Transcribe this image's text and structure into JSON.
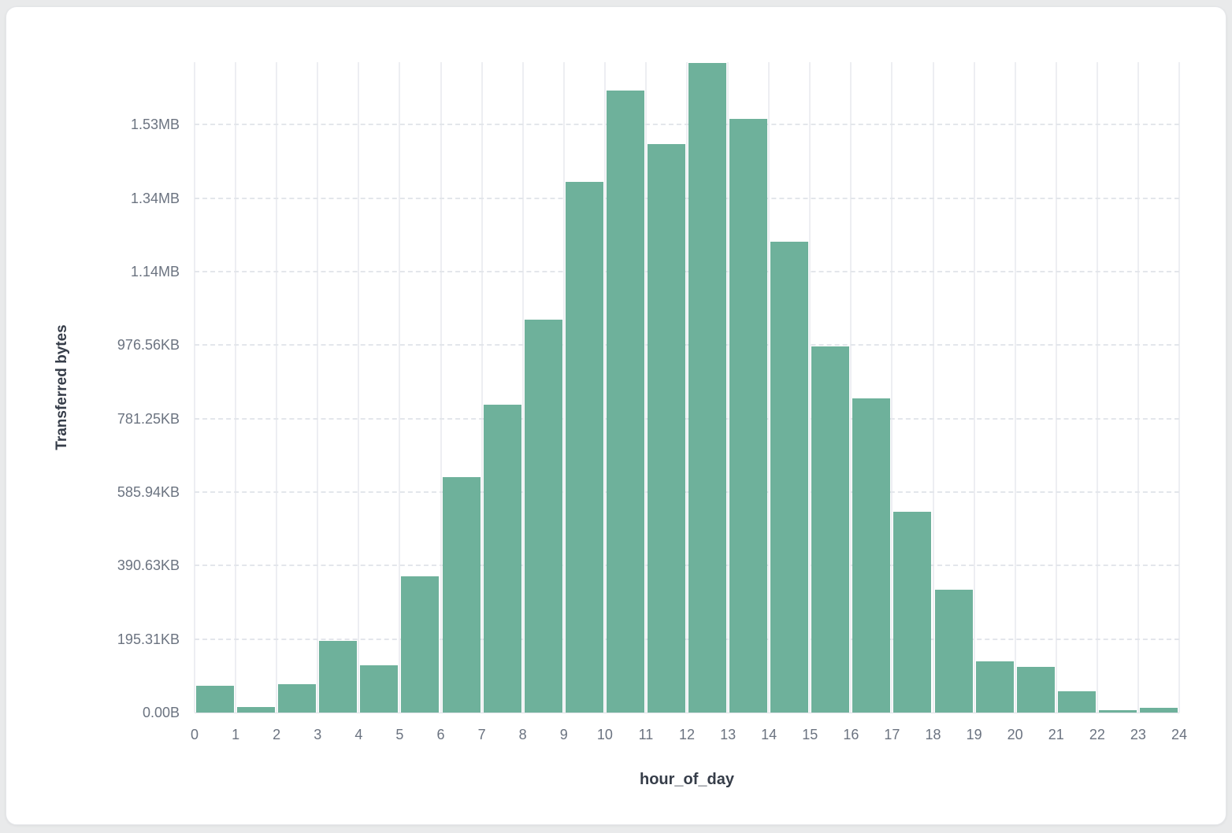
{
  "chart_data": {
    "type": "bar",
    "title": "",
    "xlabel": "hour_of_day",
    "ylabel": "Transferred bytes",
    "x_bin_starts": [
      0,
      1,
      2,
      3,
      4,
      5,
      6,
      7,
      8,
      9,
      10,
      11,
      12,
      13,
      14,
      15,
      16,
      17,
      18,
      19,
      20,
      21,
      22,
      23
    ],
    "values_bytes": [
      72000,
      15000,
      78000,
      196000,
      128000,
      370000,
      640000,
      838000,
      1069000,
      1444000,
      1692000,
      1547000,
      1768000,
      1615000,
      1282000,
      997000,
      856000,
      546000,
      334000,
      140000,
      125000,
      57000,
      6000,
      13000
    ],
    "x_tick_labels": [
      "0",
      "1",
      "2",
      "3",
      "4",
      "5",
      "6",
      "7",
      "8",
      "9",
      "10",
      "11",
      "12",
      "13",
      "14",
      "15",
      "16",
      "17",
      "18",
      "19",
      "20",
      "21",
      "22",
      "23",
      "24"
    ],
    "y_tick_labels": [
      "0.00B",
      "195.31KB",
      "390.63KB",
      "585.94KB",
      "781.25KB",
      "976.56KB",
      "1.14MB",
      "1.34MB",
      "1.53MB"
    ],
    "y_tick_values_bytes": [
      0,
      200000,
      400000,
      600000,
      800000,
      1000000,
      1200000,
      1400000,
      1600000
    ],
    "y_max_bytes": 1770000,
    "x_range": [
      0,
      24
    ],
    "legend": "none",
    "grid": {
      "vertical": "solid",
      "horizontal": "dashed"
    },
    "colors": {
      "bar": "#6eb19b",
      "vertical_gridline": "#edeef2",
      "horizontal_gridline": "#e3e6eb",
      "tick_label_text": "#6b7380",
      "axis_title_text": "#363d49",
      "card_background": "#ffffff",
      "page_background": "#e9eaeb"
    }
  }
}
